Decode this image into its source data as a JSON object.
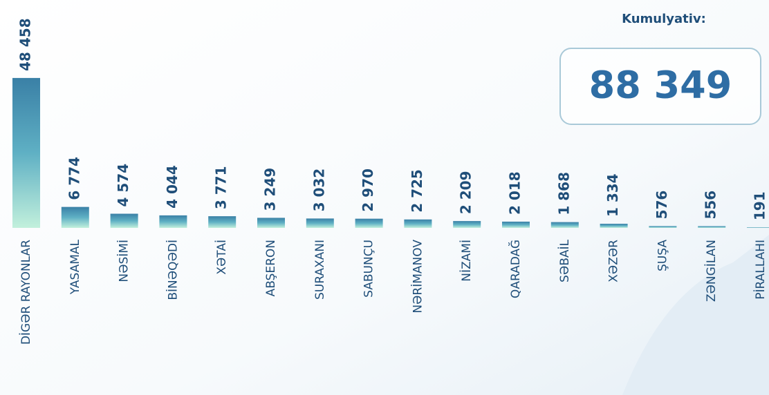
{
  "chart_data": {
    "type": "bar",
    "categories": [
      "DİGƏR RAYONLAR",
      "YASAMAL",
      "NƏSİMİ",
      "BİNƏQƏDİ",
      "XƏTAİ",
      "ABŞERON",
      "SURAXANI",
      "SABUNÇU",
      "NƏRİMANOV",
      "NİZAMİ",
      "QARADAĞ",
      "SƏBAİL",
      "XƏZƏR",
      "ŞUŞA",
      "ZƏNGİLAN",
      "PİRALLAHI"
    ],
    "values": [
      48458,
      6774,
      4574,
      4044,
      3771,
      3249,
      3032,
      2970,
      2725,
      2209,
      2018,
      1868,
      1334,
      576,
      556,
      191
    ],
    "value_labels": [
      "48 458",
      "6 774",
      "4 574",
      "4 044",
      "3 771",
      "3 249",
      "3 032",
      "2 970",
      "2 725",
      "2 209",
      "2 018",
      "1 868",
      "1 334",
      "576",
      "556",
      "191"
    ],
    "color": "#3a86a8",
    "ylim": [
      0,
      50000
    ],
    "annotations": [
      "Kumulyativ:",
      "88 349"
    ]
  }
}
